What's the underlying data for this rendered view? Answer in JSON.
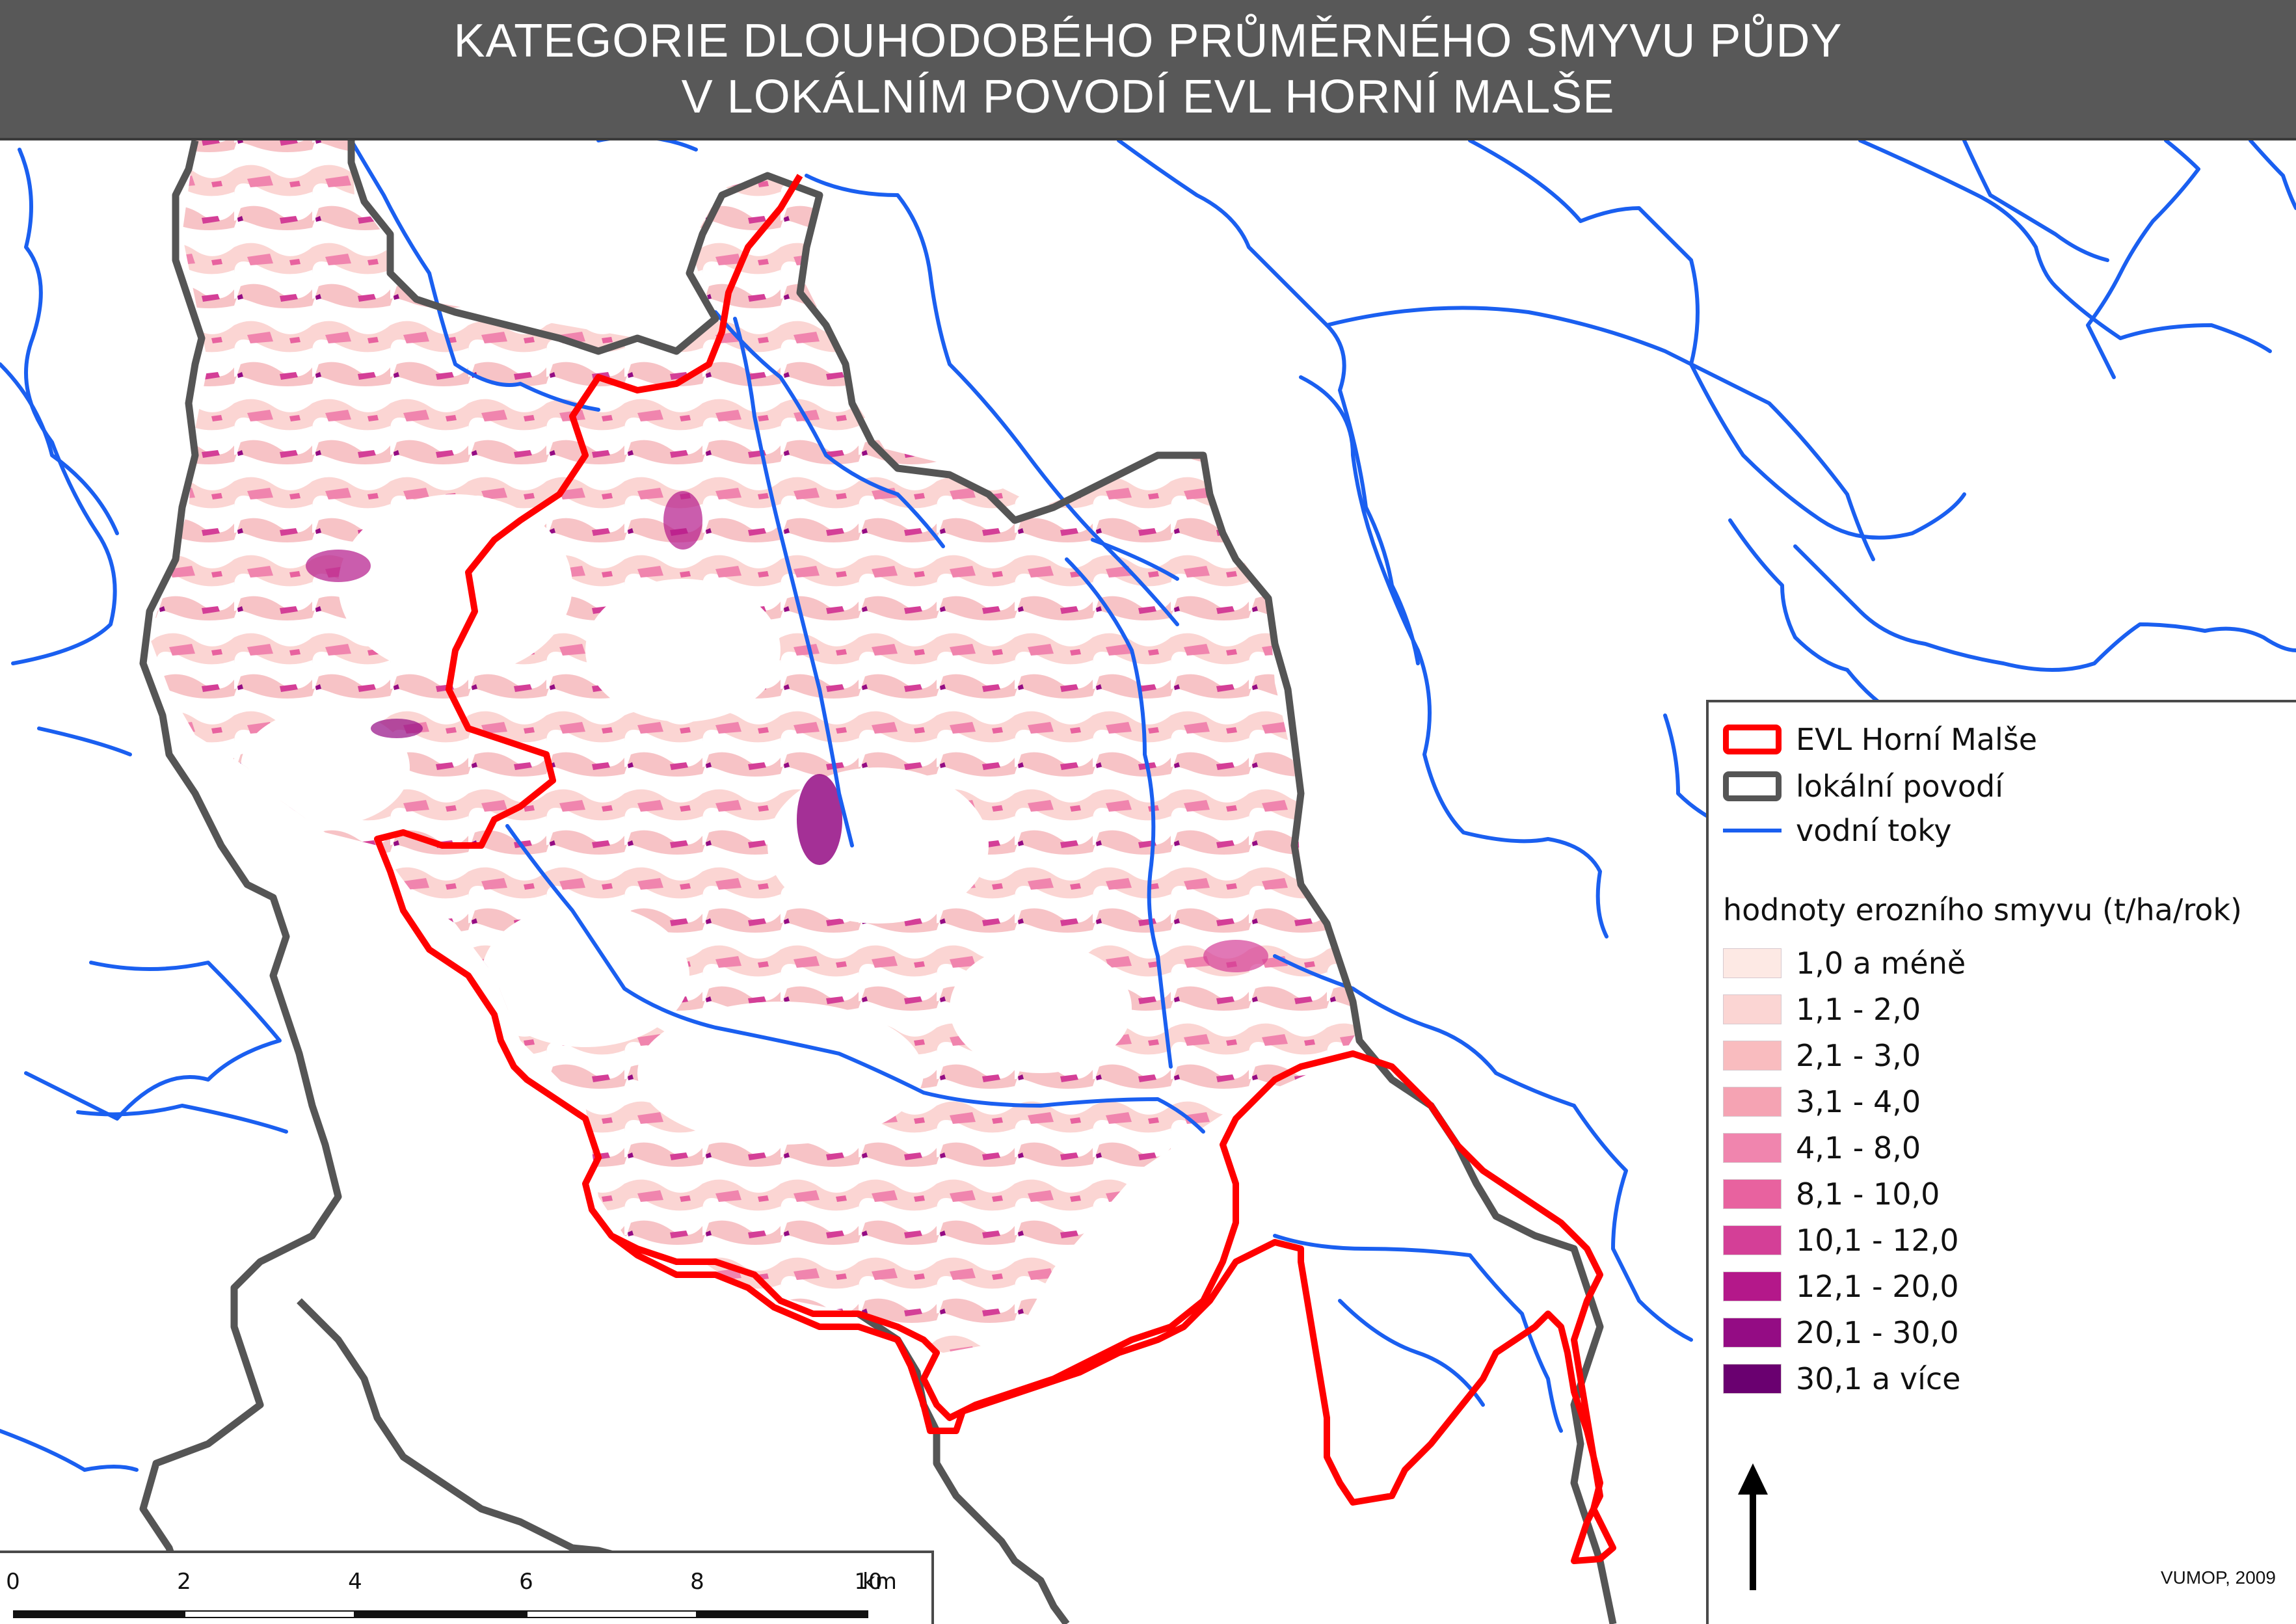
{
  "title": {
    "line1": "KATEGORIE DLOUHODOBÉHO PRŮMĚRNÉHO SMYVU PŮDY",
    "line2": "V LOKÁLNÍM POVODÍ EVL HORNÍ MALŠE"
  },
  "legend": {
    "items": [
      {
        "label": "EVL Horní Malše",
        "symbol": "red-outline-box",
        "color": "#ff0000"
      },
      {
        "label": "lokální povodí",
        "symbol": "grey-outline-box",
        "color": "#555555"
      },
      {
        "label": "vodní toky",
        "symbol": "blue-line",
        "color": "#1a5ff0"
      }
    ],
    "heading": "hodnoty erozního smyvu (t/ha/rok)",
    "classes": [
      {
        "label": "1,0 a méně",
        "color": "#fde9e4"
      },
      {
        "label": "1,1 - 2,0",
        "color": "#fbd5d3"
      },
      {
        "label": "2,1 - 3,0",
        "color": "#f9bcbf"
      },
      {
        "label": "3,1 - 4,0",
        "color": "#f5a3b3"
      },
      {
        "label": "4,1 - 8,0",
        "color": "#f085ae"
      },
      {
        "label": "8,1 - 10,0",
        "color": "#e8629f"
      },
      {
        "label": "10,1 - 12,0",
        "color": "#d43f97"
      },
      {
        "label": "12,1 - 20,0",
        "color": "#b4188a"
      },
      {
        "label": "20,1 - 30,0",
        "color": "#940c84"
      },
      {
        "label": "30,1 a více",
        "color": "#6a0070"
      }
    ]
  },
  "scalebar": {
    "ticks": [
      "0",
      "2",
      "4",
      "6",
      "8",
      "10"
    ],
    "unit": "km"
  },
  "credit": "VUMOP, 2009",
  "north_arrow_icon": "north-arrow-icon"
}
